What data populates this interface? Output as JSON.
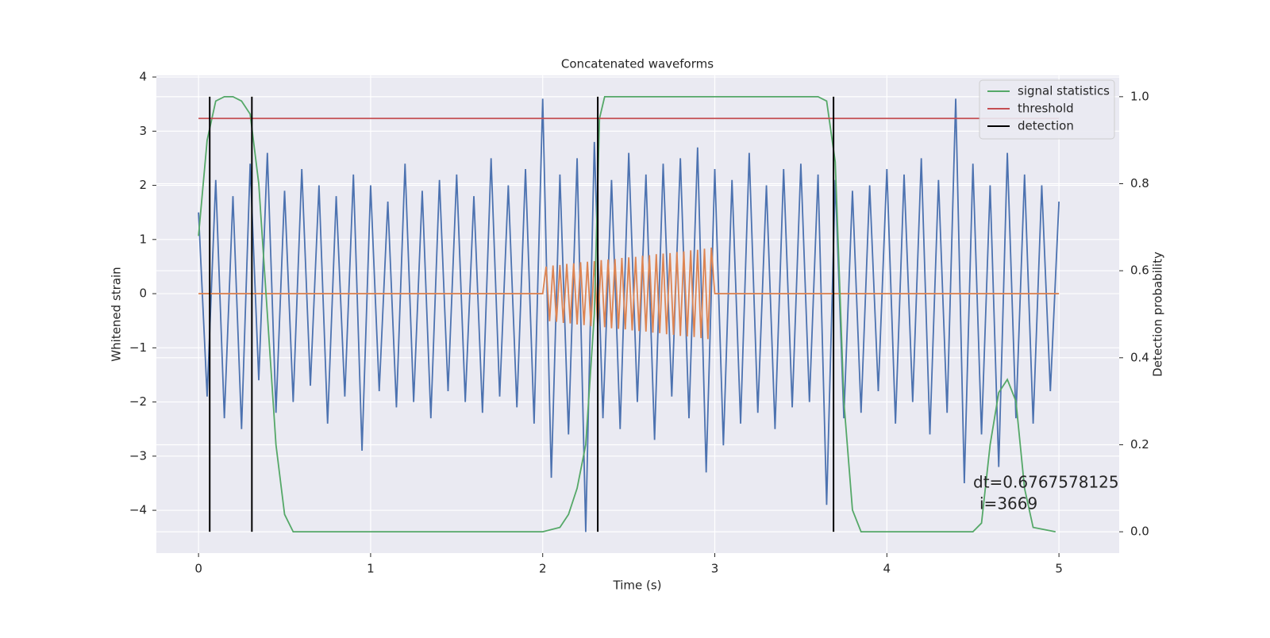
{
  "chart_data": {
    "type": "line",
    "title": "Concatenated waveforms",
    "xlabel": "Time (s)",
    "ylabel": "Whitened strain",
    "y2label": "Detection probability",
    "xlim": [
      -0.245,
      5.35
    ],
    "ylim": [
      -4.79,
      4.03
    ],
    "y2lim": [
      -0.049,
      1.049
    ],
    "xticks": [
      0,
      1,
      2,
      3,
      4,
      5
    ],
    "yticks": [
      {
        "value": -4,
        "label": "−4"
      },
      {
        "value": -3,
        "label": "−3"
      },
      {
        "value": -2,
        "label": "−2"
      },
      {
        "value": -1,
        "label": "−1"
      },
      0,
      1,
      2,
      3,
      4
    ],
    "y2ticks": [
      {
        "value": 0,
        "label": "0.0"
      },
      {
        "value": 0.2,
        "label": "0.2"
      },
      {
        "value": 0.4,
        "label": "0.4"
      },
      {
        "value": 0.6,
        "label": "0.6"
      },
      {
        "value": 0.8,
        "label": "0.8"
      },
      {
        "value": 1,
        "label": "1.0"
      }
    ],
    "grid": true,
    "legend": "upper right",
    "series": [
      {
        "color": "#4c72b0",
        "x": [
          0,
          0.05,
          0.1,
          0.15,
          0.2,
          0.25,
          0.3,
          0.35,
          0.4,
          0.45,
          0.5,
          0.55,
          0.6,
          0.65,
          0.7,
          0.75,
          0.8,
          0.85,
          0.9,
          0.95,
          1,
          1.05,
          1.1,
          1.15,
          1.2,
          1.25,
          1.3,
          1.35,
          1.4,
          1.45,
          1.5,
          1.55,
          1.6,
          1.65,
          1.7,
          1.75,
          1.8,
          1.85,
          1.9,
          1.95,
          2,
          2.05,
          2.1,
          2.15,
          2.2,
          2.25,
          2.3,
          2.35,
          2.4,
          2.45,
          2.5,
          2.55,
          2.6,
          2.65,
          2.7,
          2.75,
          2.8,
          2.85,
          2.9,
          2.95,
          3,
          3.05,
          3.1,
          3.15,
          3.2,
          3.25,
          3.3,
          3.35,
          3.4,
          3.45,
          3.5,
          3.55,
          3.6,
          3.65,
          3.7,
          3.75,
          3.8,
          3.85,
          3.9,
          3.95,
          4,
          4.05,
          4.1,
          4.15,
          4.2,
          4.25,
          4.3,
          4.35,
          4.4,
          4.45,
          4.5,
          4.55,
          4.6,
          4.65,
          4.7,
          4.75,
          4.8,
          4.85,
          4.9,
          4.95,
          5
        ],
        "values": [
          1.5,
          -1.9,
          2.1,
          -2.3,
          1.8,
          -2.5,
          2.4,
          -1.6,
          2.6,
          -2.2,
          1.9,
          -2.0,
          2.3,
          -1.7,
          2.0,
          -2.4,
          1.8,
          -1.9,
          2.2,
          -2.9,
          2.0,
          -1.8,
          1.7,
          -2.1,
          2.4,
          -2.0,
          1.9,
          -2.3,
          2.1,
          -1.8,
          2.2,
          -2.0,
          1.8,
          -2.2,
          2.5,
          -1.9,
          2.0,
          -2.1,
          2.3,
          -2.4,
          3.6,
          -3.4,
          2.2,
          -2.6,
          2.5,
          -4.4,
          2.8,
          -2.3,
          2.1,
          -2.5,
          2.6,
          -2.0,
          2.2,
          -2.7,
          2.4,
          -1.9,
          2.5,
          -2.3,
          2.7,
          -3.3,
          2.3,
          -2.8,
          2.1,
          -2.4,
          2.6,
          -2.2,
          2.0,
          -2.5,
          2.3,
          -2.1,
          2.4,
          -2.0,
          2.2,
          -3.9,
          2.1,
          -2.3,
          1.9,
          -2.2,
          2.0,
          -1.8,
          2.3,
          -2.4,
          2.2,
          -2.0,
          2.5,
          -2.6,
          2.1,
          -2.2,
          3.6,
          -3.5,
          2.4,
          -2.6,
          2.0,
          -3.2,
          2.6,
          -2.3,
          2.2,
          -2.4,
          2.0,
          -1.8,
          1.7
        ]
      },
      {
        "color": "#dd8452",
        "x": [
          0,
          2,
          2.02,
          2.04,
          2.06,
          2.08,
          2.1,
          2.12,
          2.14,
          2.16,
          2.18,
          2.2,
          2.22,
          2.24,
          2.26,
          2.28,
          2.3,
          2.32,
          2.34,
          2.36,
          2.38,
          2.4,
          2.42,
          2.44,
          2.46,
          2.48,
          2.5,
          2.52,
          2.54,
          2.56,
          2.58,
          2.6,
          2.62,
          2.64,
          2.66,
          2.68,
          2.7,
          2.72,
          2.74,
          2.76,
          2.78,
          2.8,
          2.82,
          2.84,
          2.86,
          2.88,
          2.9,
          2.92,
          2.94,
          2.96,
          2.98,
          3,
          5
        ],
        "values": [
          0,
          0,
          0.5,
          -0.51,
          0.52,
          -0.52,
          0.53,
          -0.54,
          0.55,
          -0.55,
          0.56,
          -0.57,
          0.58,
          -0.58,
          0.59,
          -0.6,
          0.6,
          -0.61,
          0.62,
          -0.62,
          0.63,
          -0.64,
          0.64,
          -0.65,
          0.66,
          -0.66,
          0.67,
          -0.68,
          0.68,
          -0.69,
          0.7,
          -0.7,
          0.71,
          -0.72,
          0.73,
          -0.73,
          0.74,
          -0.75,
          0.75,
          -0.76,
          0.77,
          -0.78,
          0.78,
          -0.79,
          0.8,
          -0.8,
          0.81,
          -0.82,
          0.83,
          -0.84,
          0.85,
          0,
          0
        ]
      },
      {
        "name": "signal statistics",
        "color": "#55a868",
        "axis": "y2",
        "x": [
          0,
          0.05,
          0.1,
          0.15,
          0.2,
          0.25,
          0.3,
          0.35,
          0.4,
          0.45,
          0.5,
          0.55,
          0.6,
          2.0,
          2.1,
          2.15,
          2.2,
          2.25,
          2.3,
          2.33,
          2.36,
          2.4,
          3.6,
          3.65,
          3.7,
          3.75,
          3.8,
          3.85,
          4.4,
          4.5,
          4.55,
          4.6,
          4.65,
          4.7,
          4.75,
          4.8,
          4.85,
          4.98
        ],
        "values": [
          0.68,
          0.9,
          0.99,
          1.0,
          1.0,
          0.99,
          0.96,
          0.8,
          0.5,
          0.2,
          0.04,
          0.0,
          0.0,
          0.0,
          0.01,
          0.04,
          0.1,
          0.2,
          0.5,
          0.95,
          1.0,
          1.0,
          1.0,
          0.99,
          0.85,
          0.3,
          0.05,
          0.0,
          0.0,
          0.0,
          0.02,
          0.2,
          0.32,
          0.35,
          0.3,
          0.1,
          0.01,
          0.0
        ]
      },
      {
        "name": "threshold",
        "color": "#c44e52",
        "axis": "y2",
        "x": [
          0,
          5
        ],
        "values": [
          0.95,
          0.95
        ]
      }
    ],
    "detection": {
      "name": "detection",
      "color": "#000000",
      "x": [
        0.065,
        0.31,
        2.32,
        3.69
      ],
      "ymin": 0,
      "ymax": 1
    },
    "annotations": [
      "dt=0.6767578125",
      "i=3669"
    ]
  }
}
